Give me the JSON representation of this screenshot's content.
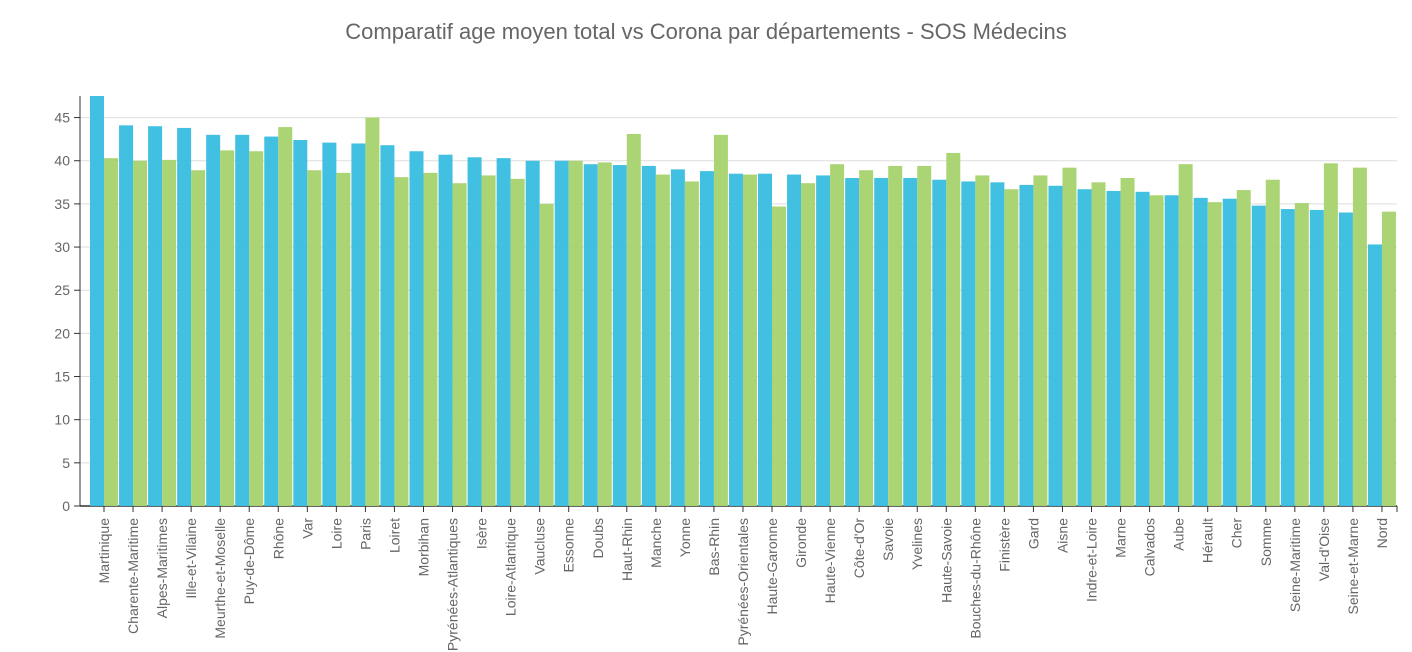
{
  "chart_data": {
    "type": "bar",
    "title": "Comparatif age moyen  total vs Corona  par départements  - SOS Médecins",
    "xlabel": "",
    "ylabel": "",
    "ylim": [
      0,
      47.5
    ],
    "yticks": [
      0,
      5,
      10,
      15,
      20,
      25,
      30,
      35,
      40,
      45
    ],
    "grid": true,
    "legend": "none",
    "categories": [
      "Martinique",
      "Charente-Maritime",
      "Alpes-Maritimes",
      "Ille-et-Vilaine",
      "Meurthe-et-Moselle",
      "Puy-de-Dôme",
      "Rhône",
      "Var",
      "Loire",
      "Paris",
      "Loiret",
      "Morbihan",
      "Pyrénées-Atlantiques",
      "Isère",
      "Loire-Atlantique",
      "Vaucluse",
      "Essonne",
      "Doubs",
      "Haut-Rhin",
      "Manche",
      "Yonne",
      "Bas-Rhin",
      "Pyrénées-Orientales",
      "Haute-Garonne",
      "Gironde",
      "Haute-Vienne",
      "Côte-d'Or",
      "Savoie",
      "Yvelines",
      "Haute-Savoie",
      "Bouches-du-Rhône",
      "Finistère",
      "Gard",
      "Aisne",
      "Indre-et-Loire",
      "Marne",
      "Calvados",
      "Aube",
      "Hérault",
      "Cher",
      "Somme",
      "Seine-Maritime",
      "Val-d'Oise",
      "Seine-et-Marne",
      "Nord"
    ],
    "series": [
      {
        "color": "#3bbee0",
        "values": [
          47.5,
          44.1,
          44.0,
          43.8,
          43.0,
          43.0,
          42.8,
          42.4,
          42.1,
          42.0,
          41.8,
          41.1,
          40.7,
          40.4,
          40.3,
          40.0,
          40.0,
          39.6,
          39.5,
          39.4,
          39.0,
          38.8,
          38.5,
          38.5,
          38.4,
          38.3,
          38.0,
          38.0,
          38.0,
          37.8,
          37.6,
          37.5,
          37.2,
          37.1,
          36.7,
          36.5,
          36.4,
          36.0,
          35.7,
          35.6,
          34.8,
          34.4,
          34.3,
          34.0,
          30.3
        ]
      },
      {
        "color": "#a8d46f",
        "values": [
          40.3,
          40.0,
          40.1,
          38.9,
          41.2,
          41.1,
          43.9,
          38.9,
          38.6,
          45.0,
          38.1,
          38.6,
          37.4,
          38.3,
          37.9,
          35.0,
          40.0,
          39.8,
          43.1,
          38.4,
          37.6,
          43.0,
          38.4,
          34.7,
          37.4,
          39.6,
          38.9,
          39.4,
          39.4,
          40.9,
          38.3,
          36.7,
          38.3,
          39.2,
          37.5,
          38.0,
          36.0,
          39.6,
          35.2,
          36.6,
          37.8,
          35.1,
          39.7,
          39.2,
          34.1
        ]
      }
    ]
  }
}
